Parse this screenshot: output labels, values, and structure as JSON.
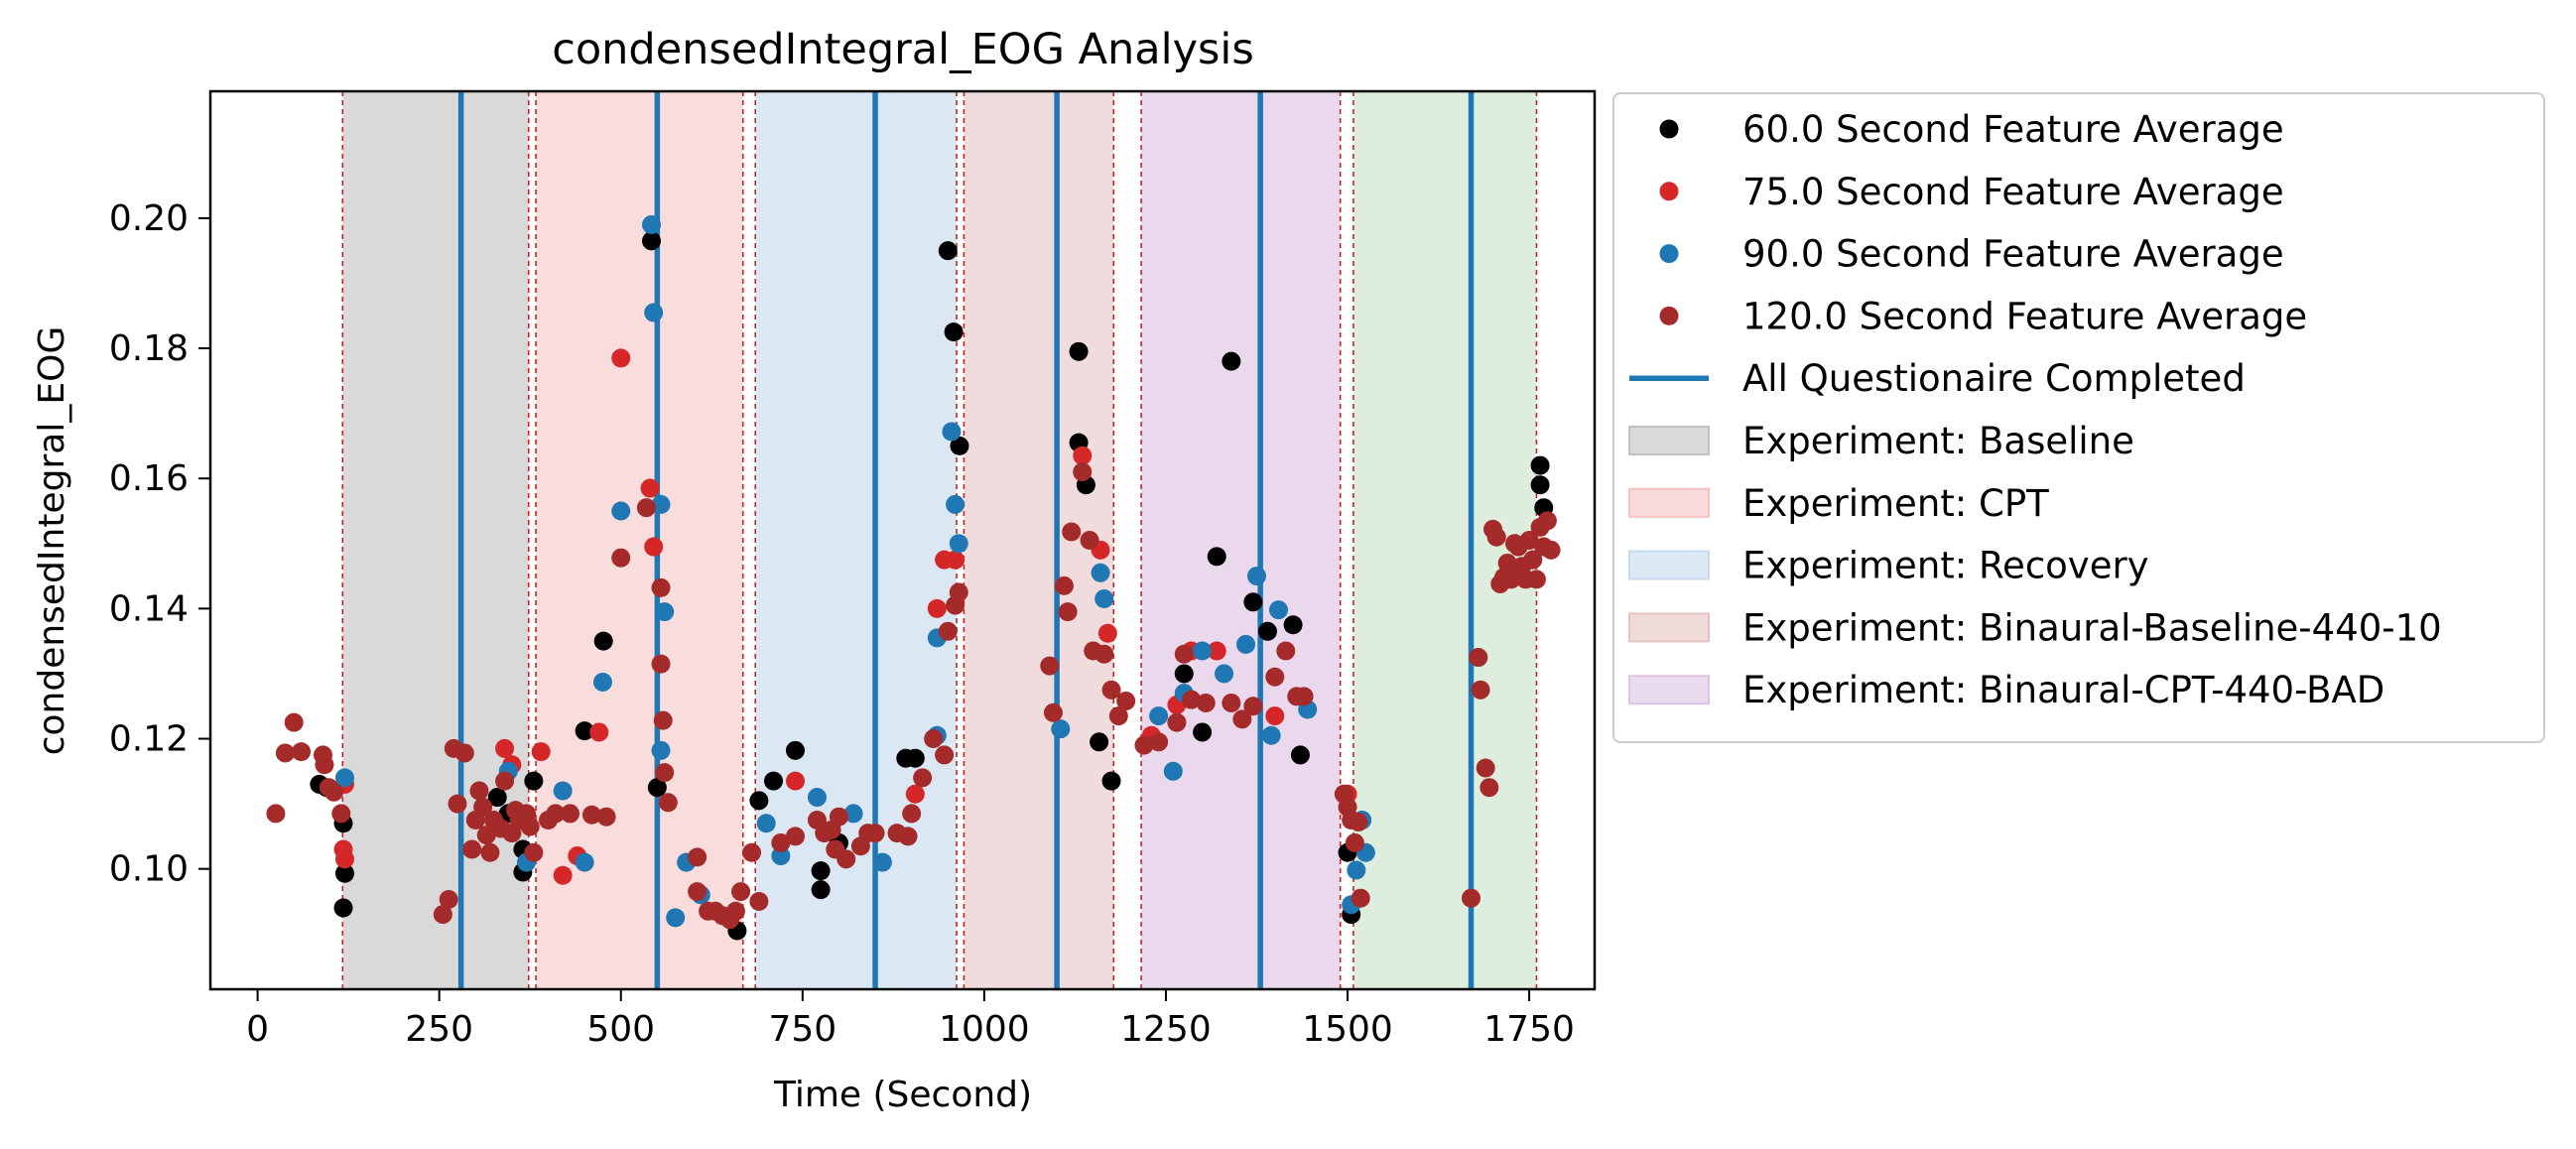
{
  "chart_data": {
    "type": "scatter",
    "title": "condensedIntegral_EOG Analysis",
    "xlabel": "Time (Second)",
    "ylabel": "condensedIntegral_EOG",
    "xlim": [
      -65,
      1840
    ],
    "ylim": [
      0.0815,
      0.2195
    ],
    "xticks": [
      0,
      250,
      500,
      750,
      1000,
      1250,
      1500,
      1750
    ],
    "yticks": [
      0.1,
      0.12,
      0.14,
      0.16,
      0.18,
      0.2
    ],
    "grid": false,
    "legend_position": "outside-right-top",
    "legend": [
      {
        "label": "60.0 Second Feature Average",
        "kind": "marker",
        "color": "#000000"
      },
      {
        "label": "75.0 Second Feature Average",
        "kind": "marker",
        "color": "#d62728"
      },
      {
        "label": "90.0 Second Feature Average",
        "kind": "marker",
        "color": "#1f77b4"
      },
      {
        "label": "120.0 Second Feature Average",
        "kind": "marker",
        "color": "#a52a2a"
      },
      {
        "label": "All Questionaire Completed",
        "kind": "line",
        "color": "#1f77b4"
      },
      {
        "label": "Experiment: Baseline",
        "kind": "patch",
        "color": "#c0c0c0"
      },
      {
        "label": "Experiment: CPT",
        "kind": "patch",
        "color": "#f4c2c2"
      },
      {
        "label": "Experiment: Recovery",
        "kind": "patch",
        "color": "#c6dcee"
      },
      {
        "label": "Experiment: Binaural-Baseline-440-10",
        "kind": "patch",
        "color": "#e6c3c3"
      },
      {
        "label": "Experiment: Binaural-CPT-440-BAD",
        "kind": "patch",
        "color": "#dcc3e3"
      }
    ],
    "phases": [
      {
        "experiment": "Baseline",
        "start": 117,
        "end": 373,
        "color": "#d9d9d9"
      },
      {
        "experiment": "CPT",
        "start": 383,
        "end": 668,
        "color": "#f9dcdc"
      },
      {
        "experiment": "Recovery",
        "start": 685,
        "end": 962,
        "color": "#dbe8f3"
      },
      {
        "experiment": "Binaural-Baseline-440-10",
        "start": 972,
        "end": 1178,
        "color": "#f0dcdc"
      },
      {
        "experiment": "Binaural-CPT-440-BAD",
        "start": 1216,
        "end": 1490,
        "color": "#ead9ec"
      },
      {
        "experiment": "",
        "start": 1508,
        "end": 1760,
        "color": "#deeede"
      }
    ],
    "boundary_lines": [
      117,
      373,
      383,
      668,
      685,
      962,
      972,
      1178,
      1216,
      1490,
      1508,
      1760
    ],
    "questionnaire_lines": [
      280,
      550,
      850,
      1100,
      1380,
      1670
    ],
    "series": [
      {
        "name": "60.0 Second Feature Average",
        "color": "#000000",
        "points": [
          [
            85,
            0.113
          ],
          [
            95,
            0.1125
          ],
          [
            118,
            0.107
          ],
          [
            120,
            0.0993
          ],
          [
            118,
            0.094
          ],
          [
            330,
            0.111
          ],
          [
            345,
            0.1085
          ],
          [
            365,
            0.103
          ],
          [
            380,
            0.1135
          ],
          [
            365,
            0.0995
          ],
          [
            450,
            0.1212
          ],
          [
            476,
            0.135
          ],
          [
            542,
            0.1965
          ],
          [
            550,
            0.1125
          ],
          [
            660,
            0.0905
          ],
          [
            690,
            0.1105
          ],
          [
            710,
            0.1135
          ],
          [
            740,
            0.1182
          ],
          [
            775,
            0.0997
          ],
          [
            775,
            0.0968
          ],
          [
            800,
            0.104
          ],
          [
            892,
            0.117
          ],
          [
            905,
            0.117
          ],
          [
            950,
            0.195
          ],
          [
            958,
            0.1825
          ],
          [
            966,
            0.165
          ],
          [
            1130,
            0.1795
          ],
          [
            1130,
            0.1655
          ],
          [
            1140,
            0.159
          ],
          [
            1158,
            0.1195
          ],
          [
            1175,
            0.1135
          ],
          [
            1275,
            0.13
          ],
          [
            1300,
            0.121
          ],
          [
            1320,
            0.148
          ],
          [
            1340,
            0.178
          ],
          [
            1370,
            0.141
          ],
          [
            1390,
            0.1365
          ],
          [
            1425,
            0.1375
          ],
          [
            1435,
            0.1175
          ],
          [
            1500,
            0.1025
          ],
          [
            1505,
            0.093
          ],
          [
            1765,
            0.162
          ],
          [
            1765,
            0.159
          ],
          [
            1770,
            0.1555
          ]
        ]
      },
      {
        "name": "75.0 Second Feature Average",
        "color": "#d62728",
        "points": [
          [
            118,
            0.103
          ],
          [
            120,
            0.1015
          ],
          [
            120,
            0.113
          ],
          [
            340,
            0.1185
          ],
          [
            350,
            0.116
          ],
          [
            390,
            0.118
          ],
          [
            420,
            0.099
          ],
          [
            440,
            0.102
          ],
          [
            470,
            0.121
          ],
          [
            500,
            0.1785
          ],
          [
            540,
            0.1585
          ],
          [
            545,
            0.1495
          ],
          [
            740,
            0.1135
          ],
          [
            905,
            0.1115
          ],
          [
            935,
            0.14
          ],
          [
            945,
            0.1475
          ],
          [
            960,
            0.1475
          ],
          [
            1135,
            0.1635
          ],
          [
            1160,
            0.149
          ],
          [
            1170,
            0.1362
          ],
          [
            1230,
            0.1205
          ],
          [
            1265,
            0.1252
          ],
          [
            1285,
            0.1335
          ],
          [
            1320,
            0.1335
          ],
          [
            1400,
            0.1235
          ],
          [
            1500,
            0.1115
          ]
        ]
      },
      {
        "name": "90.0 Second Feature Average",
        "color": "#1f77b4",
        "points": [
          [
            120,
            0.114
          ],
          [
            345,
            0.115
          ],
          [
            370,
            0.101
          ],
          [
            420,
            0.112
          ],
          [
            450,
            0.101
          ],
          [
            475,
            0.1287
          ],
          [
            500,
            0.155
          ],
          [
            542,
            0.199
          ],
          [
            545,
            0.1855
          ],
          [
            555,
            0.156
          ],
          [
            560,
            0.1395
          ],
          [
            555,
            0.1182
          ],
          [
            575,
            0.0925
          ],
          [
            590,
            0.101
          ],
          [
            610,
            0.096
          ],
          [
            700,
            0.107
          ],
          [
            720,
            0.102
          ],
          [
            770,
            0.111
          ],
          [
            820,
            0.1085
          ],
          [
            860,
            0.101
          ],
          [
            935,
            0.1355
          ],
          [
            935,
            0.1205
          ],
          [
            955,
            0.1672
          ],
          [
            960,
            0.156
          ],
          [
            965,
            0.15
          ],
          [
            1105,
            0.1215
          ],
          [
            1160,
            0.1455
          ],
          [
            1165,
            0.1415
          ],
          [
            1240,
            0.1235
          ],
          [
            1260,
            0.115
          ],
          [
            1275,
            0.127
          ],
          [
            1300,
            0.1335
          ],
          [
            1330,
            0.13
          ],
          [
            1360,
            0.1345
          ],
          [
            1375,
            0.145
          ],
          [
            1395,
            0.1205
          ],
          [
            1405,
            0.1398
          ],
          [
            1445,
            0.1245
          ],
          [
            1505,
            0.0945
          ],
          [
            1512,
            0.0998
          ],
          [
            1520,
            0.1075
          ],
          [
            1525,
            0.1025
          ]
        ]
      },
      {
        "name": "120.0 Second Feature Average",
        "color": "#a52a2a",
        "points": [
          [
            25,
            0.1085
          ],
          [
            38,
            0.1178
          ],
          [
            50,
            0.1225
          ],
          [
            60,
            0.118
          ],
          [
            90,
            0.1175
          ],
          [
            92,
            0.116
          ],
          [
            98,
            0.1125
          ],
          [
            105,
            0.1118
          ],
          [
            115,
            0.1085
          ],
          [
            255,
            0.093
          ],
          [
            263,
            0.0953
          ],
          [
            270,
            0.1185
          ],
          [
            275,
            0.11
          ],
          [
            285,
            0.1178
          ],
          [
            295,
            0.103
          ],
          [
            300,
            0.1075
          ],
          [
            305,
            0.112
          ],
          [
            310,
            0.1095
          ],
          [
            315,
            0.1052
          ],
          [
            320,
            0.1025
          ],
          [
            325,
            0.1075
          ],
          [
            335,
            0.1062
          ],
          [
            340,
            0.1135
          ],
          [
            350,
            0.1055
          ],
          [
            355,
            0.109
          ],
          [
            360,
            0.1075
          ],
          [
            370,
            0.1085
          ],
          [
            375,
            0.1065
          ],
          [
            380,
            0.1025
          ],
          [
            400,
            0.1075
          ],
          [
            410,
            0.1085
          ],
          [
            430,
            0.1085
          ],
          [
            460,
            0.1083
          ],
          [
            480,
            0.108
          ],
          [
            500,
            0.1478
          ],
          [
            535,
            0.1555
          ],
          [
            555,
            0.1432
          ],
          [
            555,
            0.1315
          ],
          [
            558,
            0.1228
          ],
          [
            560,
            0.1148
          ],
          [
            565,
            0.1102
          ],
          [
            605,
            0.1018
          ],
          [
            605,
            0.0965
          ],
          [
            620,
            0.0935
          ],
          [
            630,
            0.0935
          ],
          [
            640,
            0.0928
          ],
          [
            650,
            0.0922
          ],
          [
            658,
            0.0935
          ],
          [
            665,
            0.0965
          ],
          [
            680,
            0.1025
          ],
          [
            690,
            0.095
          ],
          [
            720,
            0.104
          ],
          [
            740,
            0.105
          ],
          [
            770,
            0.1075
          ],
          [
            780,
            0.1055
          ],
          [
            790,
            0.106
          ],
          [
            795,
            0.103
          ],
          [
            800,
            0.108
          ],
          [
            810,
            0.1015
          ],
          [
            830,
            0.1035
          ],
          [
            840,
            0.1055
          ],
          [
            850,
            0.1055
          ],
          [
            880,
            0.1055
          ],
          [
            895,
            0.105
          ],
          [
            900,
            0.1085
          ],
          [
            915,
            0.114
          ],
          [
            930,
            0.12
          ],
          [
            945,
            0.1175
          ],
          [
            950,
            0.1365
          ],
          [
            960,
            0.1405
          ],
          [
            965,
            0.1425
          ],
          [
            1090,
            0.1312
          ],
          [
            1095,
            0.124
          ],
          [
            1110,
            0.1435
          ],
          [
            1115,
            0.1395
          ],
          [
            1120,
            0.1518
          ],
          [
            1135,
            0.161
          ],
          [
            1145,
            0.1505
          ],
          [
            1150,
            0.1335
          ],
          [
            1165,
            0.133
          ],
          [
            1175,
            0.1275
          ],
          [
            1185,
            0.1235
          ],
          [
            1195,
            0.1258
          ],
          [
            1220,
            0.119
          ],
          [
            1240,
            0.1195
          ],
          [
            1265,
            0.1225
          ],
          [
            1275,
            0.133
          ],
          [
            1285,
            0.126
          ],
          [
            1305,
            0.1255
          ],
          [
            1340,
            0.1255
          ],
          [
            1355,
            0.123
          ],
          [
            1370,
            0.125
          ],
          [
            1400,
            0.1295
          ],
          [
            1415,
            0.1335
          ],
          [
            1430,
            0.1265
          ],
          [
            1440,
            0.1265
          ],
          [
            1495,
            0.1115
          ],
          [
            1500,
            0.1095
          ],
          [
            1505,
            0.1075
          ],
          [
            1510,
            0.104
          ],
          [
            1515,
            0.1072
          ],
          [
            1518,
            0.0955
          ],
          [
            1670,
            0.0955
          ],
          [
            1680,
            0.1325
          ],
          [
            1683,
            0.1275
          ],
          [
            1690,
            0.1155
          ],
          [
            1695,
            0.1125
          ],
          [
            1700,
            0.1522
          ],
          [
            1705,
            0.151
          ],
          [
            1710,
            0.1438
          ],
          [
            1715,
            0.1448
          ],
          [
            1720,
            0.147
          ],
          [
            1725,
            0.1445
          ],
          [
            1730,
            0.15
          ],
          [
            1735,
            0.1495
          ],
          [
            1740,
            0.1465
          ],
          [
            1745,
            0.1445
          ],
          [
            1750,
            0.1505
          ],
          [
            1755,
            0.1475
          ],
          [
            1760,
            0.1445
          ],
          [
            1765,
            0.1525
          ],
          [
            1770,
            0.1495
          ],
          [
            1775,
            0.1535
          ],
          [
            1780,
            0.149
          ]
        ]
      }
    ]
  }
}
